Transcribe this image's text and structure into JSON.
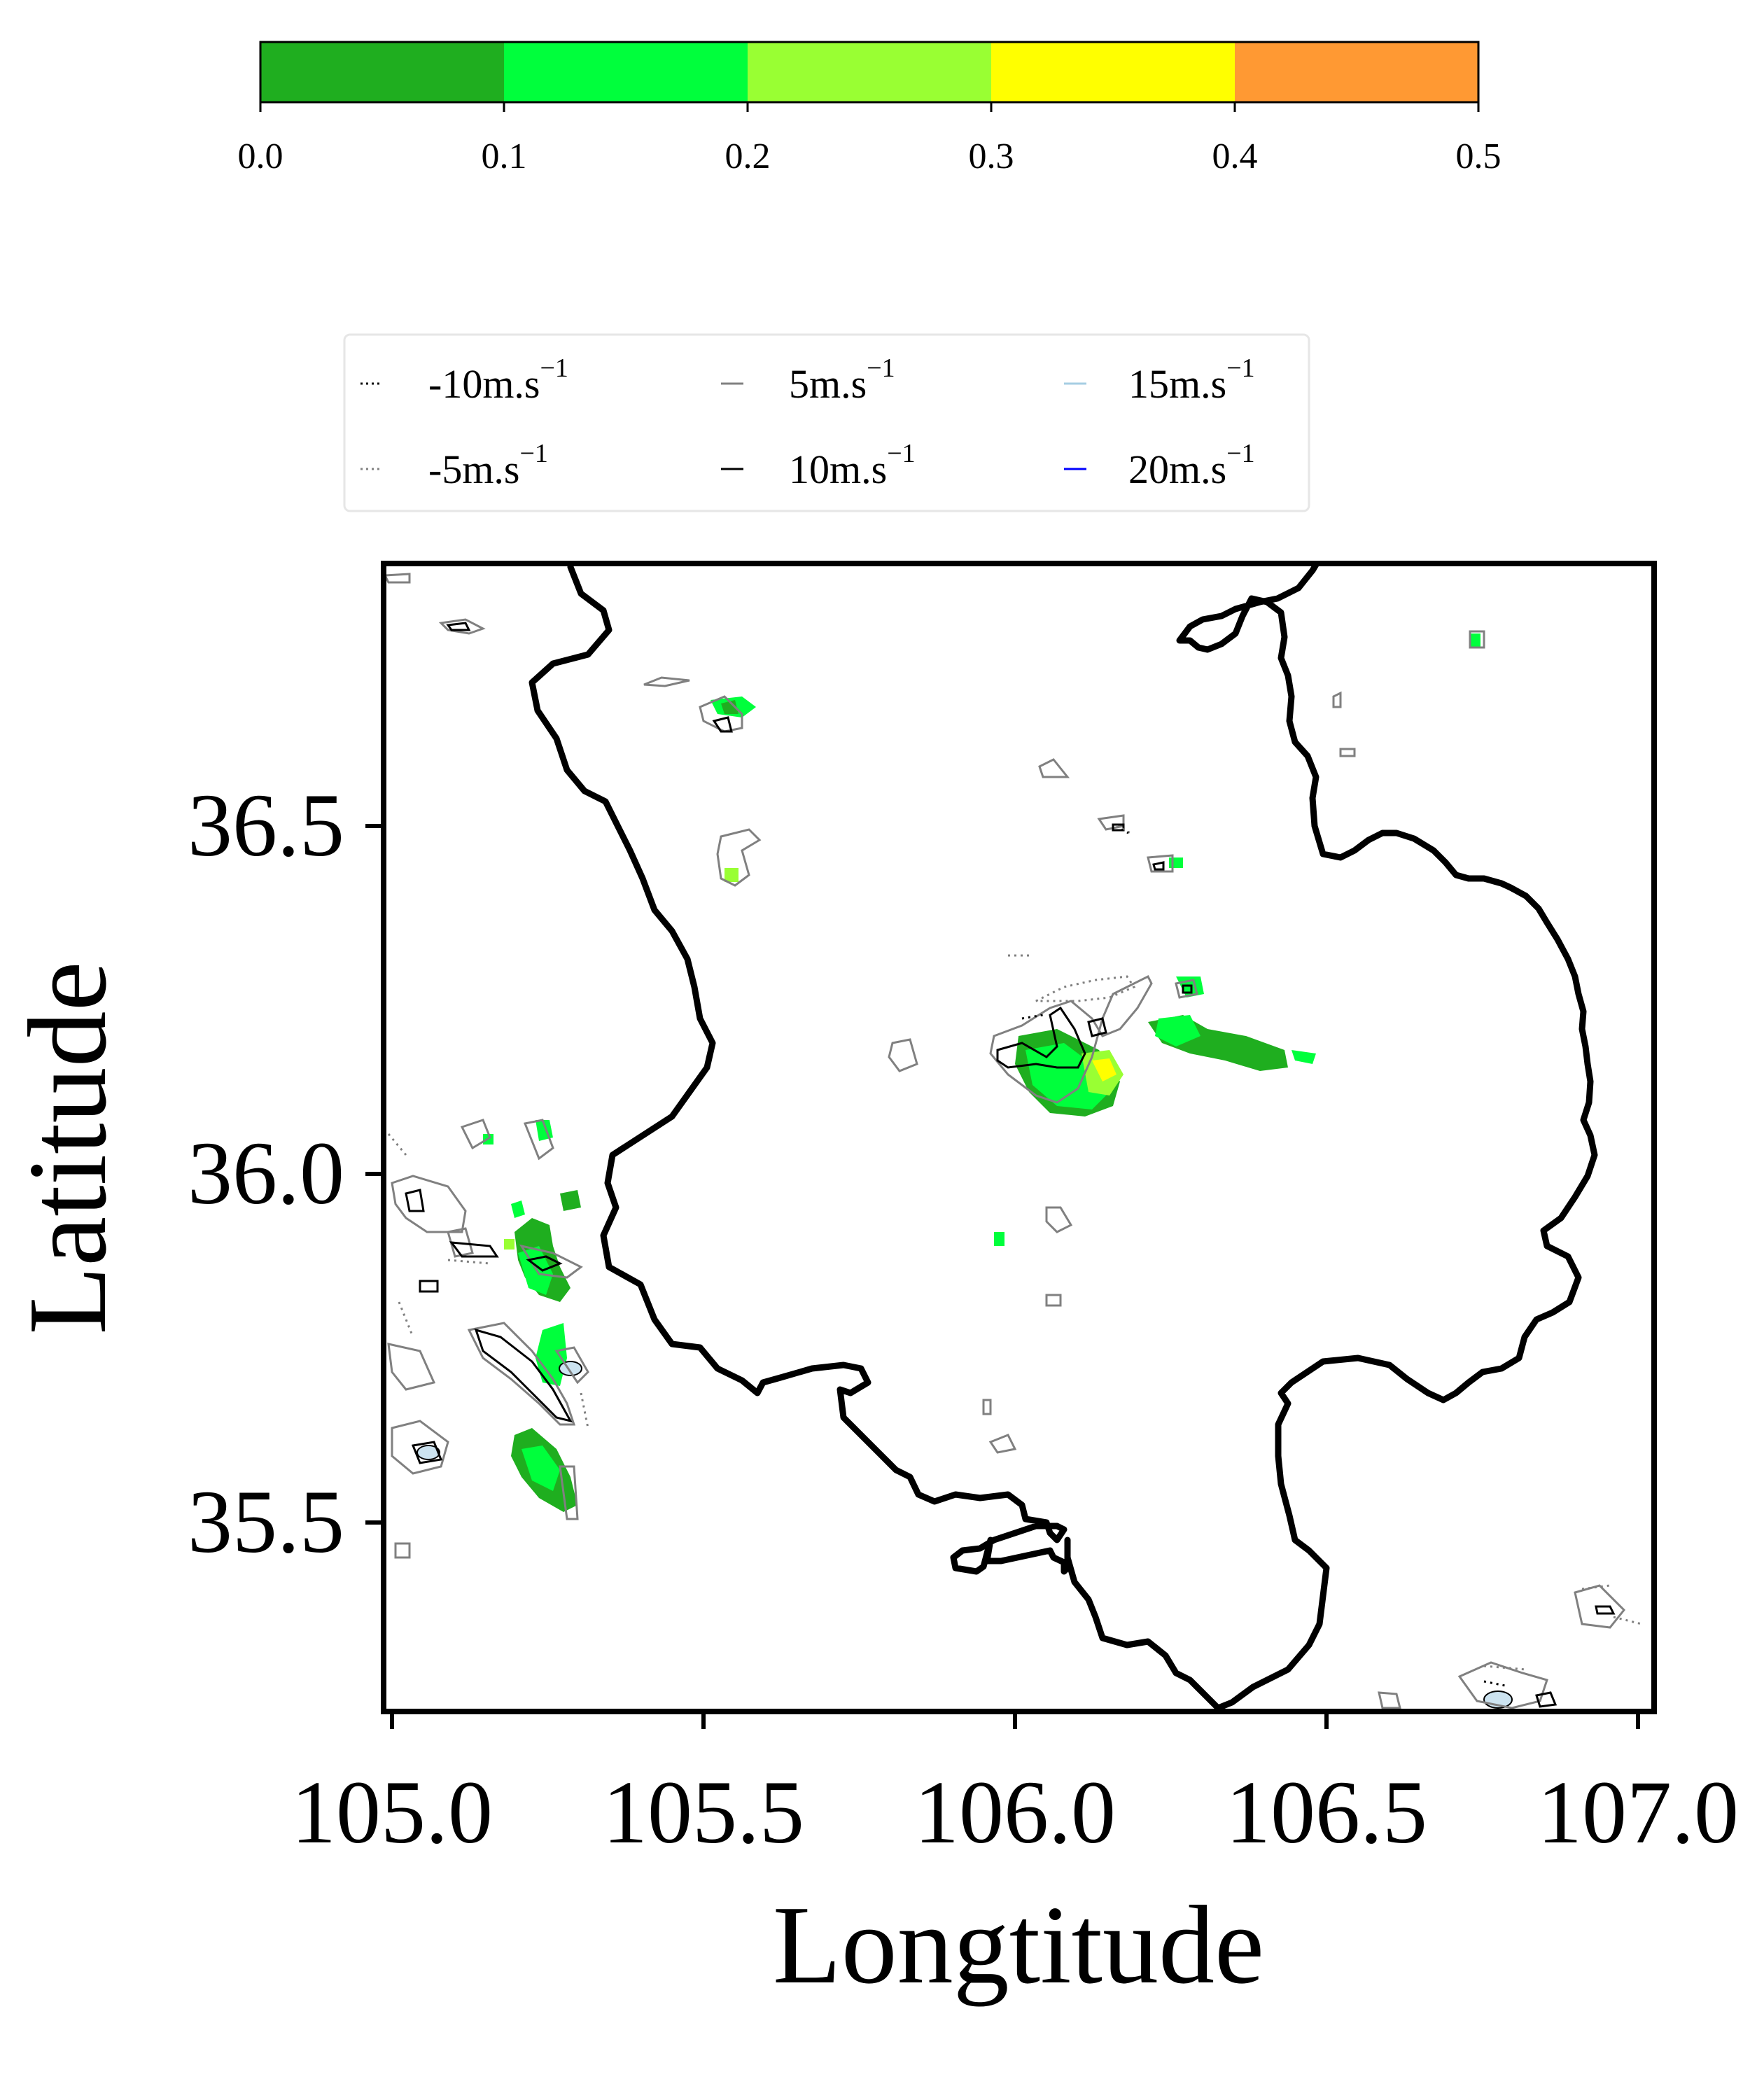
{
  "colorbar": {
    "ticks": [
      "0.0",
      "0.1",
      "0.2",
      "0.3",
      "0.4",
      "0.5"
    ],
    "segments": [
      {
        "from": 0.0,
        "to": 0.1,
        "color": "#1fae1f"
      },
      {
        "from": 0.1,
        "to": 0.2,
        "color": "#00ff3c"
      },
      {
        "from": 0.2,
        "to": 0.3,
        "color": "#99ff33"
      },
      {
        "from": 0.3,
        "to": 0.4,
        "color": "#ffff00"
      },
      {
        "from": 0.4,
        "to": 0.5,
        "color": "#ff9933"
      }
    ]
  },
  "legend": {
    "entries": [
      {
        "label": "-10m.s",
        "exp": "−1",
        "style": "dotted",
        "color": "#000000"
      },
      {
        "label": "-5m.s",
        "exp": "−1",
        "style": "dotted",
        "color": "#808080"
      },
      {
        "label": "5m.s",
        "exp": "−1",
        "style": "solid",
        "color": "#808080"
      },
      {
        "label": "10m.s",
        "exp": "−1",
        "style": "solid",
        "color": "#000000"
      },
      {
        "label": "15m.s",
        "exp": "−1",
        "style": "solid",
        "color": "#a6cee3"
      },
      {
        "label": "20m.s",
        "exp": "−1",
        "style": "solid",
        "color": "#0000ff"
      }
    ]
  },
  "map": {
    "xlabel": "Longtitude",
    "ylabel": "Latitude",
    "xticks": [
      "105.0",
      "105.5",
      "106.0",
      "106.5",
      "107.0"
    ],
    "yticks": [
      "36.5",
      "36.0",
      "35.5"
    ],
    "xlim": [
      104.98,
      107.03
    ],
    "ylim": [
      35.22,
      36.87
    ],
    "boundary_color": "#000000"
  }
}
